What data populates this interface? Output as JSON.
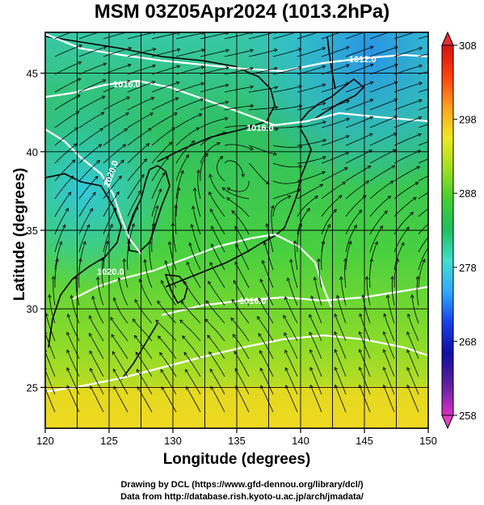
{
  "title": "MSM 03Z05Apr2024 (1013.2hPa)",
  "xaxis": {
    "label": "Longitude (degrees)",
    "range": [
      120,
      150
    ],
    "ticks": [
      {
        "value": 120,
        "label": "120"
      },
      {
        "value": 125,
        "label": "125"
      },
      {
        "value": 130,
        "label": "130"
      },
      {
        "value": 135,
        "label": "135"
      },
      {
        "value": 140,
        "label": "140"
      },
      {
        "value": 145,
        "label": "145"
      },
      {
        "value": 150,
        "label": "150"
      }
    ]
  },
  "yaxis": {
    "label": "Latitude  (degrees)",
    "range": [
      22.4,
      47.6
    ],
    "ticks": [
      {
        "value": 25,
        "label": "25"
      },
      {
        "value": 30,
        "label": "30"
      },
      {
        "value": 35,
        "label": "35"
      },
      {
        "value": 40,
        "label": "40"
      },
      {
        "value": 45,
        "label": "45"
      }
    ]
  },
  "colorbar": {
    "range": [
      258,
      308
    ],
    "labels": [
      {
        "value": 308,
        "label": "308"
      },
      {
        "value": 298,
        "label": "298"
      },
      {
        "value": 288,
        "label": "288"
      },
      {
        "value": 278,
        "label": "278"
      },
      {
        "value": 268,
        "label": "268"
      },
      {
        "value": 258,
        "label": "258"
      }
    ],
    "colors": [
      "#d830c8",
      "#6020a0",
      "#1010a0",
      "#1840e8",
      "#30a8ff",
      "#40e0d0",
      "#20c060",
      "#40d030",
      "#a0e020",
      "#f0e820",
      "#ffa020",
      "#ff4010",
      "#d81010"
    ]
  },
  "isobars": [
    {
      "label": "1012.0"
    },
    {
      "label": "1016.0"
    },
    {
      "label": "1016.0"
    },
    {
      "label": "1020.0"
    },
    {
      "label": "1020.0"
    },
    {
      "label": "1016.0"
    }
  ],
  "credits": {
    "line1": "Drawing by DCL (https://www.gfd-dennou.org/library/dcl/)",
    "line2": "Data from http://database.rish.kyoto-u.ac.jp/arch/jmadata/"
  }
}
